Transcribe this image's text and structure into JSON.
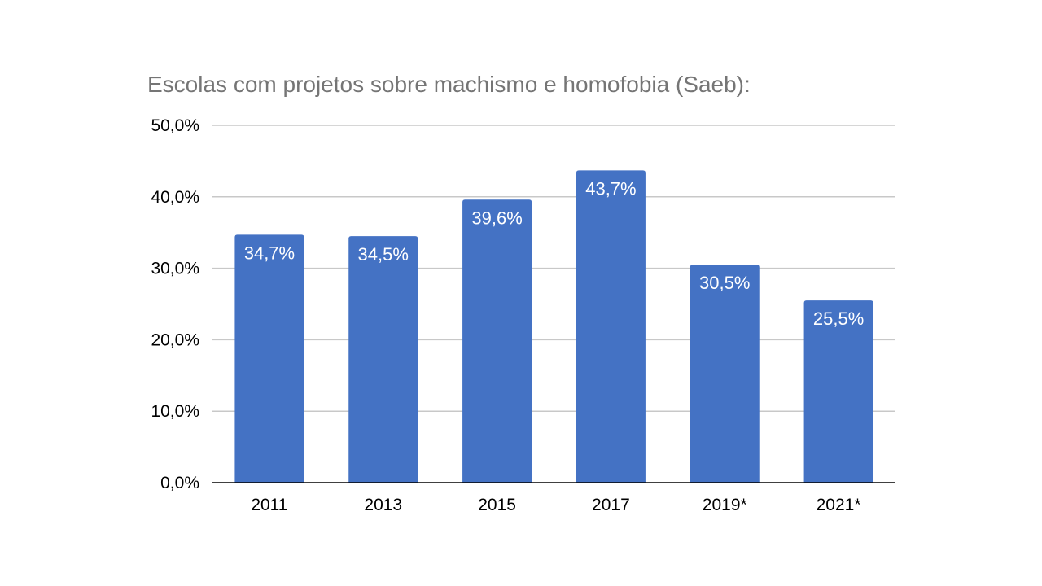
{
  "chart_data": {
    "type": "bar",
    "title": "Escolas com projetos sobre machismo e homofobia (Saeb):",
    "xlabel": "",
    "ylabel": "",
    "categories": [
      "2011",
      "2013",
      "2015",
      "2017",
      "2019*",
      "2021*"
    ],
    "values": [
      34.7,
      34.5,
      39.6,
      43.7,
      30.5,
      25.5
    ],
    "value_labels": [
      "34,7%",
      "34,5%",
      "39,6%",
      "43,7%",
      "30,5%",
      "25,5%"
    ],
    "ylim": [
      0,
      50
    ],
    "yticks": [
      0,
      10,
      20,
      30,
      40,
      50
    ],
    "ytick_labels": [
      "0,0%",
      "10,0%",
      "20,0%",
      "30,0%",
      "40,0%",
      "50,0%"
    ],
    "grid": true,
    "legend": "none",
    "bar_color": "#4472c4"
  }
}
